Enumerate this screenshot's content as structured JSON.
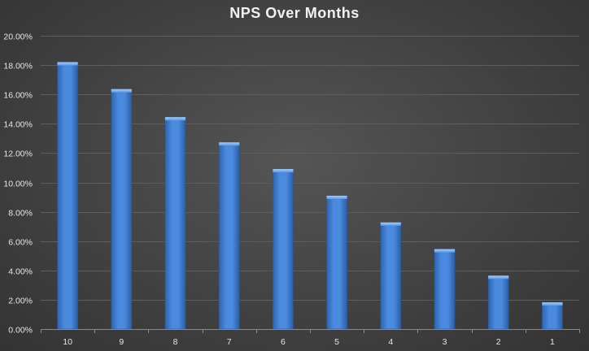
{
  "chart_data": {
    "type": "bar",
    "title": "NPS Over Months",
    "categories": [
      "10",
      "9",
      "8",
      "7",
      "6",
      "5",
      "4",
      "3",
      "2",
      "1"
    ],
    "values": [
      0.182,
      0.1636,
      0.1445,
      0.1273,
      0.1091,
      0.0909,
      0.0727,
      0.0545,
      0.0364,
      0.0182
    ],
    "yticks": [
      "0.00%",
      "2.00%",
      "4.00%",
      "6.00%",
      "8.00%",
      "10.00%",
      "12.00%",
      "14.00%",
      "16.00%",
      "18.00%",
      "20.00%"
    ],
    "ylim": [
      0,
      0.2
    ],
    "ytick_step": 0.02,
    "grid": true,
    "legend": "none",
    "bar_color": "#3e7fd0"
  }
}
